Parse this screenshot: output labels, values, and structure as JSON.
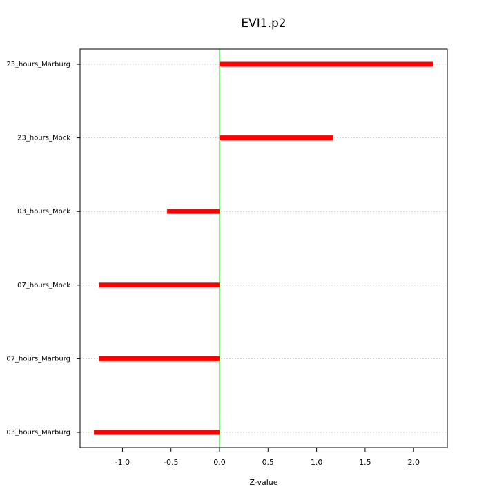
{
  "chart_data": {
    "type": "hbar",
    "title": "EVI1.p2",
    "xlabel": "Z-value",
    "categories": [
      "23_hours_Marburg",
      "23_hours_Mock",
      "03_hours_Mock",
      "07_hours_Mock",
      "07_hours_Marburg",
      "03_hours_Marburg"
    ],
    "values": [
      2.2,
      1.17,
      -0.54,
      -1.245,
      -1.245,
      -1.294
    ],
    "color": "#ff0000",
    "reference_line": 0,
    "reference_color": "#00dd00",
    "xlim": [
      -1.437,
      2.347
    ],
    "xticks": [
      {
        "value": -1,
        "label": "-1.0"
      },
      {
        "value": -0.5,
        "label": "-0.5"
      },
      {
        "value": 0,
        "label": "0.0"
      },
      0.5,
      {
        "value": 1,
        "label": "1.0"
      },
      1.5,
      {
        "value": 2,
        "label": "2.0"
      }
    ],
    "grid": true
  }
}
